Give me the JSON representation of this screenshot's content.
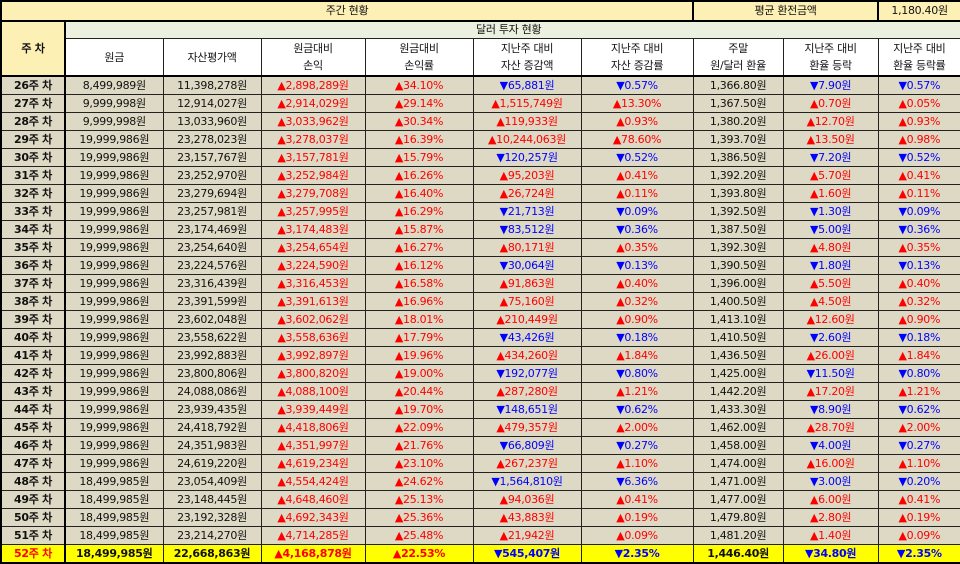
{
  "title": "주간 현황",
  "avg_exchange_label": "평균 환전금액",
  "avg_exchange_value": "1,180.40원",
  "section_title": "달러 투자 현황",
  "week_header": "주 차",
  "columns": [
    {
      "l1": "원금",
      "l2": ""
    },
    {
      "l1": "자산평가액",
      "l2": ""
    },
    {
      "l1": "원금대비",
      "l2": "손익"
    },
    {
      "l1": "원금대비",
      "l2": "손익률"
    },
    {
      "l1": "지난주 대비",
      "l2": "자산 증감액"
    },
    {
      "l1": "지난주 대비",
      "l2": "자산 증감률"
    },
    {
      "l1": "주말",
      "l2": "원/달러 환율"
    },
    {
      "l1": "지난주 대비",
      "l2": "환율 등락"
    },
    {
      "l1": "지난주 대비",
      "l2": "환율 등락률"
    }
  ],
  "colors": {
    "up": "#ff0000",
    "down": "#0000ff",
    "highlight": "#ffff00",
    "header": "#fdf0b5",
    "body": "#ddd9c4"
  },
  "rows": [
    [
      "26주 차",
      "8,499,989원",
      "11,398,278원",
      "▲2,898,289원",
      "▲34.10%",
      "▼65,881원",
      "▼0.57%",
      "1,366.80원",
      "▼7.90원",
      "▼0.57%"
    ],
    [
      "27주 차",
      "9,999,998원",
      "12,914,027원",
      "▲2,914,029원",
      "▲29.14%",
      "▲1,515,749원",
      "▲13.30%",
      "1,367.50원",
      "▲0.70원",
      "▲0.05%"
    ],
    [
      "28주 차",
      "9,999,998원",
      "13,033,960원",
      "▲3,033,962원",
      "▲30.34%",
      "▲119,933원",
      "▲0.93%",
      "1,380.20원",
      "▲12.70원",
      "▲0.93%"
    ],
    [
      "29주 차",
      "19,999,986원",
      "23,278,023원",
      "▲3,278,037원",
      "▲16.39%",
      "▲10,244,063원",
      "▲78.60%",
      "1,393.70원",
      "▲13.50원",
      "▲0.98%"
    ],
    [
      "30주 차",
      "19,999,986원",
      "23,157,767원",
      "▲3,157,781원",
      "▲15.79%",
      "▼120,257원",
      "▼0.52%",
      "1,386.50원",
      "▼7.20원",
      "▼0.52%"
    ],
    [
      "31주 차",
      "19,999,986원",
      "23,252,970원",
      "▲3,252,984원",
      "▲16.26%",
      "▲95,203원",
      "▲0.41%",
      "1,392.20원",
      "▲5.70원",
      "▲0.41%"
    ],
    [
      "32주 차",
      "19,999,986원",
      "23,279,694원",
      "▲3,279,708원",
      "▲16.40%",
      "▲26,724원",
      "▲0.11%",
      "1,393.80원",
      "▲1.60원",
      "▲0.11%"
    ],
    [
      "33주 차",
      "19,999,986원",
      "23,257,981원",
      "▲3,257,995원",
      "▲16.29%",
      "▼21,713원",
      "▼0.09%",
      "1,392.50원",
      "▼1.30원",
      "▼0.09%"
    ],
    [
      "34주 차",
      "19,999,986원",
      "23,174,469원",
      "▲3,174,483원",
      "▲15.87%",
      "▼83,512원",
      "▼0.36%",
      "1,387.50원",
      "▼5.00원",
      "▼0.36%"
    ],
    [
      "35주 차",
      "19,999,986원",
      "23,254,640원",
      "▲3,254,654원",
      "▲16.27%",
      "▲80,171원",
      "▲0.35%",
      "1,392.30원",
      "▲4.80원",
      "▲0.35%"
    ],
    [
      "36주 차",
      "19,999,986원",
      "23,224,576원",
      "▲3,224,590원",
      "▲16.12%",
      "▼30,064원",
      "▼0.13%",
      "1,390.50원",
      "▼1.80원",
      "▼0.13%"
    ],
    [
      "37주 차",
      "19,999,986원",
      "23,316,439원",
      "▲3,316,453원",
      "▲16.58%",
      "▲91,863원",
      "▲0.40%",
      "1,396.00원",
      "▲5.50원",
      "▲0.40%"
    ],
    [
      "38주 차",
      "19,999,986원",
      "23,391,599원",
      "▲3,391,613원",
      "▲16.96%",
      "▲75,160원",
      "▲0.32%",
      "1,400.50원",
      "▲4.50원",
      "▲0.32%"
    ],
    [
      "39주 차",
      "19,999,986원",
      "23,602,048원",
      "▲3,602,062원",
      "▲18.01%",
      "▲210,449원",
      "▲0.90%",
      "1,413.10원",
      "▲12.60원",
      "▲0.90%"
    ],
    [
      "40주 차",
      "19,999,986원",
      "23,558,622원",
      "▲3,558,636원",
      "▲17.79%",
      "▼43,426원",
      "▼0.18%",
      "1,410.50원",
      "▼2.60원",
      "▼0.18%"
    ],
    [
      "41주 차",
      "19,999,986원",
      "23,992,883원",
      "▲3,992,897원",
      "▲19.96%",
      "▲434,260원",
      "▲1.84%",
      "1,436.50원",
      "▲26.00원",
      "▲1.84%"
    ],
    [
      "42주 차",
      "19,999,986원",
      "23,800,806원",
      "▲3,800,820원",
      "▲19.00%",
      "▼192,077원",
      "▼0.80%",
      "1,425.00원",
      "▼11.50원",
      "▼0.80%"
    ],
    [
      "43주 차",
      "19,999,986원",
      "24,088,086원",
      "▲4,088,100원",
      "▲20.44%",
      "▲287,280원",
      "▲1.21%",
      "1,442.20원",
      "▲17.20원",
      "▲1.21%"
    ],
    [
      "44주 차",
      "19,999,986원",
      "23,939,435원",
      "▲3,939,449원",
      "▲19.70%",
      "▼148,651원",
      "▼0.62%",
      "1,433.30원",
      "▼8.90원",
      "▼0.62%"
    ],
    [
      "45주 차",
      "19,999,986원",
      "24,418,792원",
      "▲4,418,806원",
      "▲22.09%",
      "▲479,357원",
      "▲2.00%",
      "1,462.00원",
      "▲28.70원",
      "▲2.00%"
    ],
    [
      "46주 차",
      "19,999,986원",
      "24,351,983원",
      "▲4,351,997원",
      "▲21.76%",
      "▼66,809원",
      "▼0.27%",
      "1,458.00원",
      "▼4.00원",
      "▼0.27%"
    ],
    [
      "47주 차",
      "19,999,986원",
      "24,619,220원",
      "▲4,619,234원",
      "▲23.10%",
      "▲267,237원",
      "▲1.10%",
      "1,474.00원",
      "▲16.00원",
      "▲1.10%"
    ],
    [
      "48주 차",
      "18,499,985원",
      "23,054,409원",
      "▲4,554,424원",
      "▲24.62%",
      "▼1,564,810원",
      "▼6.36%",
      "1,471.00원",
      "▼3.00원",
      "▼0.20%"
    ],
    [
      "49주 차",
      "18,499,985원",
      "23,148,445원",
      "▲4,648,460원",
      "▲25.13%",
      "▲94,036원",
      "▲0.41%",
      "1,477.00원",
      "▲6.00원",
      "▲0.41%"
    ],
    [
      "50주 차",
      "18,499,985원",
      "23,192,328원",
      "▲4,692,343원",
      "▲25.36%",
      "▲43,883원",
      "▲0.19%",
      "1,479.80원",
      "▲2.80원",
      "▲0.19%"
    ],
    [
      "51주 차",
      "18,499,985원",
      "23,214,270원",
      "▲4,714,285원",
      "▲25.48%",
      "▲21,942원",
      "▲0.09%",
      "1,481.20원",
      "▲1.40원",
      "▲0.09%"
    ],
    [
      "52주 차",
      "18,499,985원",
      "22,668,863원",
      "▲4,168,878원",
      "▲22.53%",
      "▼545,407원",
      "▼2.35%",
      "1,446.40원",
      "▼34.80원",
      "▼2.35%"
    ]
  ]
}
